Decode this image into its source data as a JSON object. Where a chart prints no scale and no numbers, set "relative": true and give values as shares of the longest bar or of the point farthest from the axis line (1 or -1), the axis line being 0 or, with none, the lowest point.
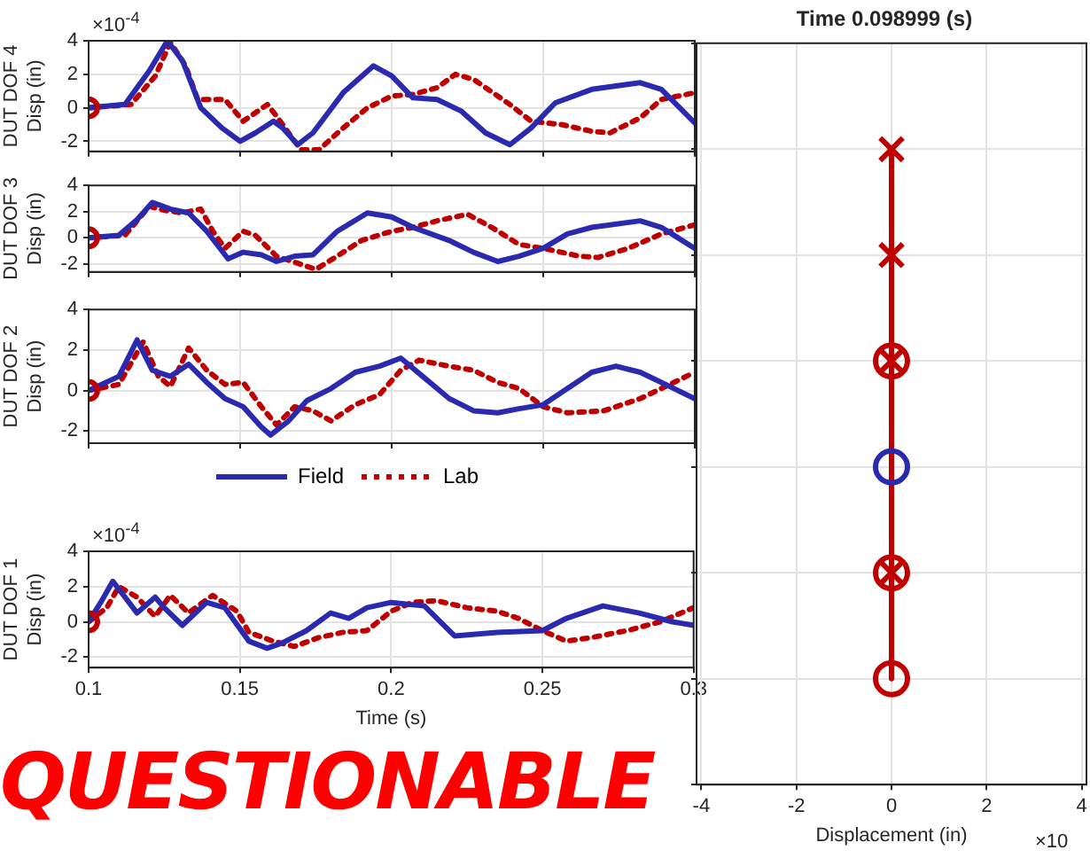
{
  "chart_data": [
    {
      "type": "line",
      "ylabel": "DUT DOF 4\nDisp (in)",
      "annotations": [
        "×10$^{-4}$"
      ],
      "xlim": [
        0.1,
        0.3
      ],
      "xticks": [
        0.1,
        0.15,
        0.2,
        0.25,
        0.3
      ],
      "ylim": [
        -2.6,
        4
      ],
      "yticks": [
        -2,
        0,
        2,
        4
      ],
      "grid": true,
      "tick_labels": "y",
      "series": [
        {
          "color": "#2a2ab0",
          "line_style": "solid",
          "marker": "none",
          "x": [
            0.1,
            0.112,
            0.12,
            0.126,
            0.131,
            0.137,
            0.144,
            0.15,
            0.155,
            0.161,
            0.164,
            0.169,
            0.174,
            0.184,
            0.194,
            0.2,
            0.207,
            0.215,
            0.223,
            0.231,
            0.239,
            0.246,
            0.254,
            0.266,
            0.282,
            0.289,
            0.3
          ],
          "values": [
            0,
            0.2,
            2.2,
            4.0,
            2.8,
            0,
            -1.2,
            -2.0,
            -1.5,
            -0.8,
            -1.2,
            -2.2,
            -1.5,
            0.9,
            2.5,
            1.9,
            0.6,
            0.5,
            -0.2,
            -1.5,
            -2.2,
            -1.2,
            0.3,
            1.1,
            1.5,
            1.1,
            -0.9
          ]
        },
        {
          "color": "#c00000",
          "line_style": "dotted",
          "marker": "none",
          "x": [
            0.1,
            0.114,
            0.122,
            0.127,
            0.132,
            0.136,
            0.145,
            0.151,
            0.159,
            0.162,
            0.17,
            0.176,
            0.184,
            0.192,
            0.2,
            0.207,
            0.215,
            0.221,
            0.227,
            0.239,
            0.246,
            0.256,
            0.266,
            0.272,
            0.282,
            0.289,
            0.3
          ],
          "values": [
            0,
            0.2,
            1.9,
            3.9,
            2.5,
            0.5,
            0.5,
            -0.8,
            0.2,
            -0.5,
            -2.5,
            -2.5,
            -1.2,
            0,
            0.7,
            0.8,
            1.2,
            2.0,
            1.7,
            0.2,
            -0.8,
            -1.0,
            -1.4,
            -1.5,
            -0.6,
            0.5,
            0.9
          ]
        },
        {
          "color": "#c00000",
          "type": "scatter",
          "marker": "circle",
          "x": [
            0.1
          ],
          "values": [
            0
          ]
        }
      ]
    },
    {
      "type": "line",
      "ylabel": "DUT DOF 3\nDisp (in)",
      "xlim": [
        0.1,
        0.3
      ],
      "xticks": [
        0.1,
        0.15,
        0.2,
        0.25,
        0.3
      ],
      "ylim": [
        -2.6,
        4
      ],
      "yticks": [
        -2,
        0,
        2,
        4
      ],
      "grid": true,
      "tick_labels": "y",
      "series": [
        {
          "color": "#2a2ab0",
          "line_style": "solid",
          "marker": "none",
          "x": [
            0.1,
            0.11,
            0.116,
            0.121,
            0.127,
            0.133,
            0.139,
            0.146,
            0.151,
            0.157,
            0.162,
            0.168,
            0.174,
            0.182,
            0.192,
            0.2,
            0.207,
            0.219,
            0.227,
            0.235,
            0.242,
            0.25,
            0.258,
            0.266,
            0.282,
            0.289,
            0.3
          ],
          "values": [
            0,
            0.2,
            1.4,
            2.7,
            2.2,
            1.9,
            0.5,
            -1.6,
            -1.1,
            -1.3,
            -1.8,
            -1.4,
            -1.3,
            0.5,
            1.9,
            1.6,
            0.8,
            -0.2,
            -1.1,
            -1.8,
            -1.4,
            -0.8,
            0.3,
            0.8,
            1.3,
            0.8,
            -0.8
          ]
        },
        {
          "color": "#c00000",
          "line_style": "dotted",
          "marker": "none",
          "x": [
            0.1,
            0.112,
            0.12,
            0.125,
            0.131,
            0.137,
            0.141,
            0.145,
            0.151,
            0.155,
            0.162,
            0.175,
            0.182,
            0.19,
            0.2,
            0.207,
            0.215,
            0.225,
            0.233,
            0.242,
            0.25,
            0.262,
            0.268,
            0.278,
            0.289,
            0.3
          ],
          "values": [
            0,
            0.2,
            2.4,
            2.1,
            1.9,
            2.2,
            0.5,
            -0.8,
            0.5,
            0.2,
            -1.4,
            -2.4,
            -1.4,
            -0.2,
            0.5,
            0.8,
            1.3,
            1.8,
            0.8,
            -0.5,
            -0.8,
            -1.4,
            -1.5,
            -0.8,
            0.3,
            1.0
          ]
        },
        {
          "color": "#c00000",
          "type": "scatter",
          "marker": "circle",
          "x": [
            0.1
          ],
          "values": [
            0
          ]
        }
      ]
    },
    {
      "type": "line",
      "ylabel": "DUT DOF 2\nDisp (in)",
      "legend": "bottom",
      "xlim": [
        0.1,
        0.3
      ],
      "xticks": [
        0.1,
        0.15,
        0.2,
        0.25,
        0.3
      ],
      "ylim": [
        -2.6,
        4
      ],
      "yticks": [
        -2,
        0,
        2,
        4
      ],
      "grid": true,
      "tick_labels": "y",
      "series": [
        {
          "name": "Field",
          "color": "#2a2ab0",
          "line_style": "solid",
          "marker": "none",
          "x": [
            0.1,
            0.11,
            0.116,
            0.121,
            0.127,
            0.133,
            0.139,
            0.145,
            0.151,
            0.157,
            0.16,
            0.166,
            0.172,
            0.18,
            0.188,
            0.196,
            0.203,
            0.211,
            0.219,
            0.227,
            0.235,
            0.242,
            0.25,
            0.258,
            0.266,
            0.274,
            0.282,
            0.289,
            0.3
          ],
          "values": [
            0,
            0.7,
            2.5,
            1.0,
            0.7,
            1.3,
            0.4,
            -0.4,
            -0.8,
            -1.8,
            -2.2,
            -1.5,
            -0.5,
            0.1,
            0.9,
            1.2,
            1.6,
            0.6,
            -0.4,
            -1.0,
            -1.1,
            -0.9,
            -0.7,
            0.1,
            0.9,
            1.2,
            0.9,
            0.4,
            -0.4
          ]
        },
        {
          "name": "Lab",
          "color": "#c00000",
          "line_style": "dotted",
          "marker": "none",
          "x": [
            0.1,
            0.11,
            0.118,
            0.123,
            0.127,
            0.133,
            0.139,
            0.145,
            0.151,
            0.157,
            0.162,
            0.168,
            0.174,
            0.18,
            0.188,
            0.196,
            0.203,
            0.209,
            0.219,
            0.227,
            0.235,
            0.242,
            0.25,
            0.258,
            0.27,
            0.282,
            0.289,
            0.3
          ],
          "values": [
            0,
            0.3,
            2.4,
            0.7,
            0.2,
            2.1,
            1.0,
            0.3,
            0.4,
            -0.8,
            -1.7,
            -0.8,
            -1.0,
            -1.5,
            -0.7,
            -0.2,
            1.0,
            1.5,
            1.2,
            1.0,
            0.4,
            0.1,
            -0.8,
            -1.1,
            -1.0,
            -0.4,
            0.1,
            0.9
          ]
        },
        {
          "color": "#c00000",
          "type": "scatter",
          "marker": "circle",
          "x": [
            0.1
          ],
          "values": [
            0
          ]
        }
      ]
    },
    {
      "type": "line",
      "ylabel": "DUT DOF 1\nDisp (in)",
      "xlabel": "Time (s)",
      "annotations": [
        "×10$^{-4}$",
        "QUESTIONABLE"
      ],
      "xlim": [
        0.1,
        0.3
      ],
      "xticks": [
        0.1,
        0.15,
        0.2,
        0.25,
        0.3
      ],
      "ylim": [
        -2.6,
        4
      ],
      "yticks": [
        -2,
        0,
        2,
        4
      ],
      "grid": true,
      "series": [
        {
          "color": "#2a2ab0",
          "line_style": "solid",
          "marker": "none",
          "x": [
            0.1,
            0.104,
            0.108,
            0.112,
            0.116,
            0.122,
            0.125,
            0.131,
            0.139,
            0.145,
            0.153,
            0.159,
            0.164,
            0.172,
            0.18,
            0.186,
            0.192,
            0.2,
            0.211,
            0.221,
            0.235,
            0.25,
            0.258,
            0.27,
            0.282,
            0.293,
            0.3
          ],
          "values": [
            0,
            1.1,
            2.3,
            1.4,
            0.5,
            1.4,
            0.8,
            -0.2,
            1.1,
            0.8,
            -1.1,
            -1.5,
            -1.2,
            -0.5,
            0.5,
            0.2,
            0.8,
            1.1,
            0.9,
            -0.8,
            -0.6,
            -0.5,
            0.2,
            0.9,
            0.5,
            0,
            -0.2
          ]
        },
        {
          "color": "#c00000",
          "line_style": "dotted",
          "marker": "none",
          "x": [
            0.1,
            0.106,
            0.11,
            0.116,
            0.122,
            0.127,
            0.133,
            0.141,
            0.149,
            0.153,
            0.161,
            0.168,
            0.176,
            0.184,
            0.192,
            0.2,
            0.207,
            0.215,
            0.225,
            0.235,
            0.242,
            0.25,
            0.258,
            0.266,
            0.278,
            0.289,
            0.3
          ],
          "values": [
            0,
            0.8,
            2.0,
            1.4,
            0.3,
            1.5,
            0.5,
            1.5,
            0.6,
            -0.6,
            -1.1,
            -1.4,
            -0.9,
            -0.6,
            -0.5,
            0.6,
            1.1,
            1.2,
            0.8,
            0.6,
            0.2,
            -0.5,
            -1.1,
            -0.9,
            -0.5,
            0,
            0.8
          ]
        },
        {
          "color": "#c00000",
          "type": "scatter",
          "marker": "circle",
          "x": [
            0.1
          ],
          "values": [
            0
          ]
        }
      ]
    },
    {
      "type": "scatter",
      "title": "Time 0.098999 (s)",
      "xlabel": "Displacement (in)",
      "annotations": [
        "×10"
      ],
      "xlim": [
        -4.1,
        4.1
      ],
      "xticks": [
        -4,
        -2,
        0,
        2,
        4
      ],
      "relative": true,
      "grid": true,
      "series": [
        {
          "color": "#c00000",
          "type": "line",
          "line_style": "solid",
          "marker": "none",
          "x": [
            0,
            0,
            0,
            0,
            0,
            0
          ],
          "values": [
            0,
            0.2,
            0.4,
            0.6,
            0.8,
            1
          ]
        },
        {
          "color": "#c00000",
          "marker": "circle",
          "x": [
            0,
            0,
            0
          ],
          "values": [
            0,
            0.2,
            0.6
          ]
        },
        {
          "color": "#c00000",
          "marker": "cross",
          "x": [
            0,
            0,
            0,
            0
          ],
          "values": [
            0.2,
            0.6,
            0.8,
            1
          ]
        },
        {
          "color": "#2a2ab0",
          "marker": "circle",
          "x": [
            0
          ],
          "values": [
            0.4
          ]
        }
      ]
    }
  ]
}
